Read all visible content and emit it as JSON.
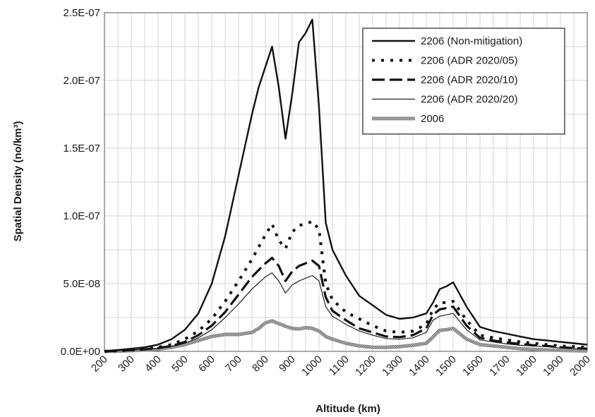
{
  "chart_data": {
    "type": "line",
    "xlabel": "Altitude (km)",
    "ylabel": "Spatial Density (no/km³)",
    "xlim": [
      200,
      2000
    ],
    "ylim": [
      0,
      2.5e-07
    ],
    "x_ticks": [
      "200",
      "300",
      "400",
      "500",
      "600",
      "700",
      "800",
      "900",
      "1000",
      "1100",
      "1200",
      "1300",
      "1400",
      "1500",
      "1600",
      "1700",
      "1800",
      "1900",
      "2000"
    ],
    "y_ticks": [
      "0.0E+00",
      "5.0E-08",
      "1.0E-07",
      "1.5E-07",
      "2.0E-07",
      "2.5E-07"
    ],
    "grid": true,
    "legend_position": "top-right",
    "series": [
      {
        "name": "2206 (Non-mitigation)",
        "style": "solid-thick",
        "x": [
          200,
          250,
          300,
          350,
          400,
          450,
          500,
          550,
          600,
          650,
          700,
          750,
          775,
          800,
          825,
          850,
          875,
          900,
          925,
          950,
          975,
          1000,
          1025,
          1050,
          1100,
          1150,
          1200,
          1250,
          1300,
          1350,
          1400,
          1425,
          1450,
          1475,
          1500,
          1550,
          1600,
          1650,
          1700,
          1750,
          1800,
          1850,
          1900,
          1950,
          2000
        ],
        "y": [
          0,
          1e-09,
          2e-09,
          3e-09,
          5e-09,
          9e-09,
          1.6e-08,
          2.8e-08,
          5e-08,
          8.5e-08,
          1.3e-07,
          1.75e-07,
          1.95e-07,
          2.1e-07,
          2.25e-07,
          1.95e-07,
          1.57e-07,
          1.9e-07,
          2.28e-07,
          2.35e-07,
          2.45e-07,
          1.8e-07,
          9.5e-08,
          7.5e-08,
          5.6e-08,
          4.1e-08,
          3.4e-08,
          2.7e-08,
          2.4e-08,
          2.5e-08,
          2.8e-08,
          3.6e-08,
          4.6e-08,
          4.8e-08,
          5.1e-08,
          3.3e-08,
          1.8e-08,
          1.5e-08,
          1.3e-08,
          1.1e-08,
          9e-09,
          8e-09,
          7e-09,
          6e-09,
          5e-09
        ]
      },
      {
        "name": "2206 (ADR 2020/05)",
        "style": "dotted-thick",
        "x": [
          200,
          250,
          300,
          350,
          400,
          450,
          500,
          550,
          600,
          650,
          700,
          750,
          800,
          825,
          850,
          875,
          900,
          925,
          950,
          975,
          1000,
          1025,
          1050,
          1100,
          1150,
          1200,
          1250,
          1300,
          1350,
          1400,
          1425,
          1450,
          1475,
          1500,
          1550,
          1600,
          1650,
          1700,
          1750,
          1800,
          1850,
          1900,
          1950,
          2000
        ],
        "y": [
          0,
          5e-10,
          1e-09,
          2e-09,
          3e-09,
          5e-09,
          9e-09,
          1.5e-08,
          2.4e-08,
          3.7e-08,
          5.2e-08,
          6.8e-08,
          8.6e-08,
          9.4e-08,
          8.2e-08,
          7.6e-08,
          8.8e-08,
          9.3e-08,
          9.4e-08,
          9.6e-08,
          9e-08,
          5e-08,
          3.8e-08,
          2.9e-08,
          2.4e-08,
          1.9e-08,
          1.5e-08,
          1.4e-08,
          1.5e-08,
          2e-08,
          3.1e-08,
          3.6e-08,
          3.6e-08,
          3.7e-08,
          2.3e-08,
          1.2e-08,
          1e-08,
          8.5e-09,
          7e-09,
          6e-09,
          5e-09,
          4e-09,
          3.5e-09,
          3e-09
        ]
      },
      {
        "name": "2206 (ADR 2020/10)",
        "style": "dashed-thick",
        "x": [
          200,
          250,
          300,
          350,
          400,
          450,
          500,
          550,
          600,
          650,
          700,
          750,
          800,
          825,
          850,
          875,
          900,
          925,
          950,
          975,
          1000,
          1025,
          1050,
          1100,
          1150,
          1200,
          1250,
          1300,
          1350,
          1400,
          1425,
          1450,
          1475,
          1500,
          1550,
          1600,
          1650,
          1700,
          1750,
          1800,
          1850,
          1900,
          1950,
          2000
        ],
        "y": [
          0,
          5e-10,
          1e-09,
          1.5e-09,
          2.5e-09,
          4e-09,
          7e-09,
          1.2e-08,
          1.9e-08,
          2.9e-08,
          4.2e-08,
          5.5e-08,
          6.5e-08,
          6.9e-08,
          6.3e-08,
          5.2e-08,
          5.9e-08,
          6.3e-08,
          6.5e-08,
          6.7e-08,
          6.3e-08,
          4e-08,
          3e-08,
          2.3e-08,
          1.7e-08,
          1.4e-08,
          1.1e-08,
          1.05e-08,
          1.2e-08,
          1.7e-08,
          2.7e-08,
          3.1e-08,
          3.2e-08,
          3.3e-08,
          1.9e-08,
          1e-08,
          8e-09,
          6.5e-09,
          5.5e-09,
          4.5e-09,
          4e-09,
          3e-09,
          2.5e-09,
          2e-09
        ]
      },
      {
        "name": "2206 (ADR 2020/20)",
        "style": "solid-thin",
        "x": [
          200,
          250,
          300,
          350,
          400,
          450,
          500,
          550,
          600,
          650,
          700,
          750,
          800,
          825,
          850,
          875,
          900,
          925,
          950,
          975,
          1000,
          1025,
          1050,
          1100,
          1150,
          1200,
          1250,
          1300,
          1350,
          1400,
          1425,
          1450,
          1475,
          1500,
          1550,
          1600,
          1650,
          1700,
          1750,
          1800,
          1850,
          1900,
          1950,
          2000
        ],
        "y": [
          0,
          5e-10,
          1e-09,
          1.5e-09,
          2e-09,
          3.5e-09,
          6e-09,
          1e-08,
          1.6e-08,
          2.5e-08,
          3.5e-08,
          4.6e-08,
          5.5e-08,
          5.8e-08,
          5.2e-08,
          4.3e-08,
          4.9e-08,
          5.2e-08,
          5.4e-08,
          5.6e-08,
          5.2e-08,
          3.3e-08,
          2.6e-08,
          2e-08,
          1.5e-08,
          1.2e-08,
          9.5e-09,
          9e-09,
          1e-08,
          1.4e-08,
          2.3e-08,
          2.6e-08,
          2.7e-08,
          2.8e-08,
          1.6e-08,
          8.5e-09,
          7e-09,
          5.5e-09,
          4.5e-09,
          4e-09,
          3.5e-09,
          2.5e-09,
          2e-09,
          1.5e-09
        ]
      },
      {
        "name": "2006",
        "style": "hatched-gray",
        "x": [
          200,
          250,
          300,
          350,
          400,
          450,
          500,
          550,
          600,
          650,
          700,
          750,
          775,
          800,
          825,
          850,
          875,
          900,
          925,
          950,
          975,
          1000,
          1025,
          1050,
          1100,
          1150,
          1200,
          1250,
          1300,
          1350,
          1400,
          1425,
          1450,
          1475,
          1500,
          1550,
          1600,
          1650,
          1700,
          1750,
          1800,
          1850,
          1900,
          1950,
          2000
        ],
        "y": [
          0,
          2e-10,
          5e-10,
          1e-09,
          1.5e-09,
          3e-09,
          5e-09,
          8e-09,
          1.1e-08,
          1.25e-08,
          1.25e-08,
          1.4e-08,
          1.7e-08,
          2.1e-08,
          2.25e-08,
          2.05e-08,
          1.85e-08,
          1.7e-08,
          1.65e-08,
          1.75e-08,
          1.7e-08,
          1.5e-08,
          1.1e-08,
          9e-09,
          6e-09,
          4e-09,
          3e-09,
          3e-09,
          3.5e-09,
          4.5e-09,
          6e-09,
          1.05e-08,
          1.55e-08,
          1.6e-08,
          1.7e-08,
          9e-09,
          5e-09,
          4e-09,
          3e-09,
          2e-09,
          1.5e-09,
          1e-09,
          8e-10,
          5e-10,
          3e-10
        ]
      }
    ]
  }
}
